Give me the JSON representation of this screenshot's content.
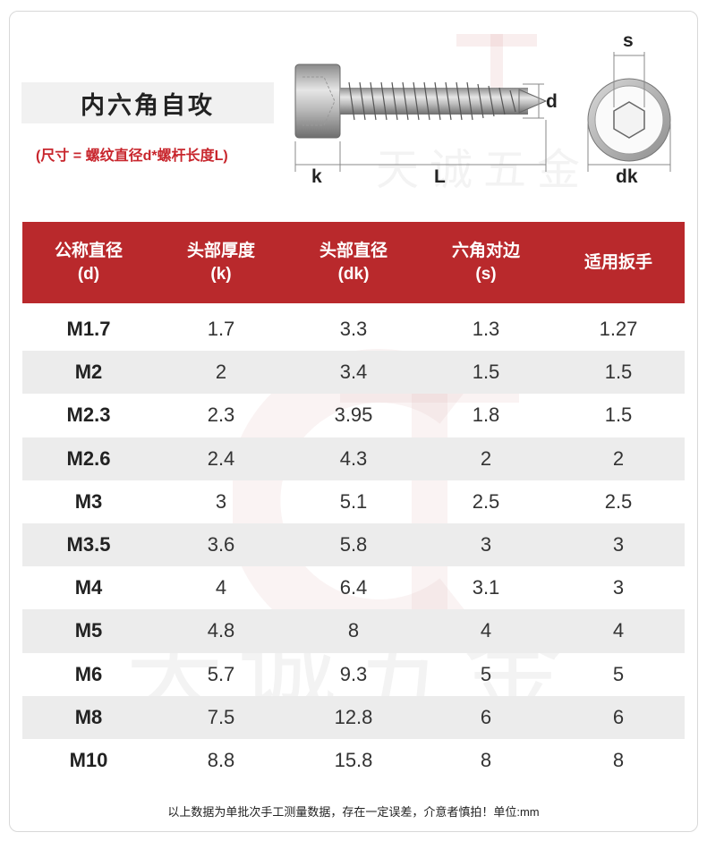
{
  "title": "内六角自攻",
  "size_note": "(尺寸 = 螺纹直径d*螺杆长度L)",
  "diagram": {
    "labels": {
      "k": "k",
      "L": "L",
      "d": "d",
      "s": "s",
      "dk": "dk"
    }
  },
  "watermark": {
    "text": "天诚五金"
  },
  "table": {
    "headers": [
      {
        "line1": "公称直径",
        "line2": "(d)"
      },
      {
        "line1": "头部厚度",
        "line2": "(k)"
      },
      {
        "line1": "头部直径",
        "line2": "(dk)"
      },
      {
        "line1": "六角对边",
        "line2": "(s)"
      },
      {
        "line1": "适用扳手",
        "line2": ""
      }
    ],
    "rows": [
      [
        "M1.7",
        "1.7",
        "3.3",
        "1.3",
        "1.27"
      ],
      [
        "M2",
        "2",
        "3.4",
        "1.5",
        "1.5"
      ],
      [
        "M2.3",
        "2.3",
        "3.95",
        "1.8",
        "1.5"
      ],
      [
        "M2.6",
        "2.4",
        "4.3",
        "2",
        "2"
      ],
      [
        "M3",
        "3",
        "5.1",
        "2.5",
        "2.5"
      ],
      [
        "M3.5",
        "3.6",
        "5.8",
        "3",
        "3"
      ],
      [
        "M4",
        "4",
        "6.4",
        "3.1",
        "3"
      ],
      [
        "M5",
        "4.8",
        "8",
        "4",
        "4"
      ],
      [
        "M6",
        "5.7",
        "9.3",
        "5",
        "5"
      ],
      [
        "M8",
        "7.5",
        "12.8",
        "6",
        "6"
      ],
      [
        "M10",
        "8.8",
        "15.8",
        "8",
        "8"
      ]
    ]
  },
  "footer": "以上数据为单批次手工测量数据，存在一定误差，介意者慎拍！单位:mm",
  "colors": {
    "accent": "#b9292c",
    "note": "#c8262d",
    "row_alt": "#ececec"
  }
}
